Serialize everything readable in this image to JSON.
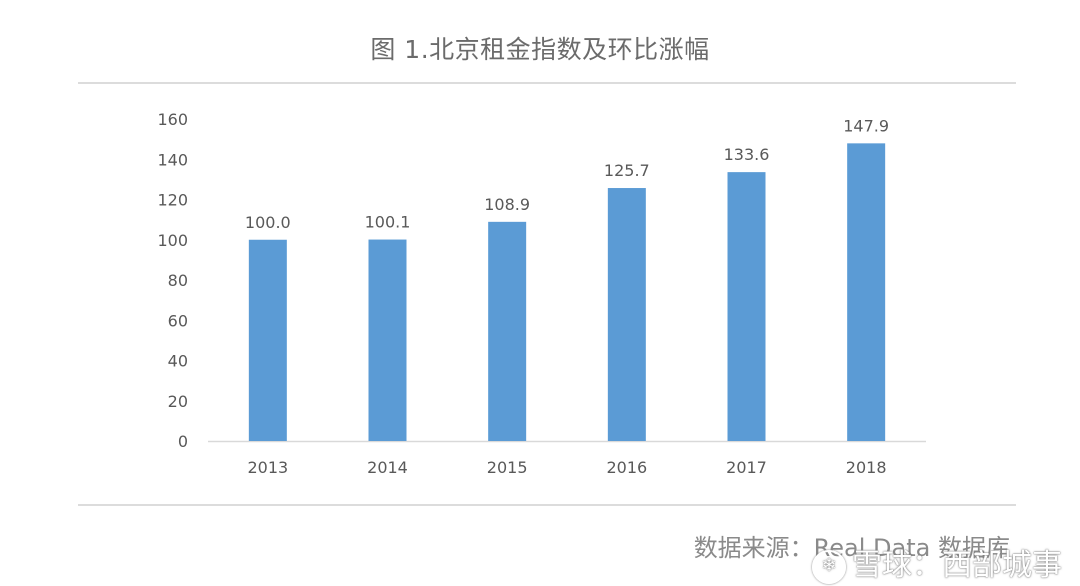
{
  "title": "图 1.北京租金指数及环比涨幅",
  "source": "数据来源：Real Data 数据库",
  "watermark": "雪球：西部城事",
  "colors": {
    "bar": "#5b9bd5",
    "axis": "#d9d9d9",
    "text": "#595959"
  },
  "chart_data": {
    "type": "bar",
    "categories": [
      "2013",
      "2014",
      "2015",
      "2016",
      "2017",
      "2018"
    ],
    "values": [
      100.0,
      100.1,
      108.9,
      125.7,
      133.6,
      147.9
    ],
    "labels": [
      "100.0",
      "100.1",
      "108.9",
      "125.7",
      "133.6",
      "147.9"
    ],
    "ylim": [
      0,
      160
    ],
    "yticks": [
      0,
      20,
      40,
      60,
      80,
      100,
      120,
      140,
      160
    ],
    "grid": false,
    "legend": "none"
  }
}
